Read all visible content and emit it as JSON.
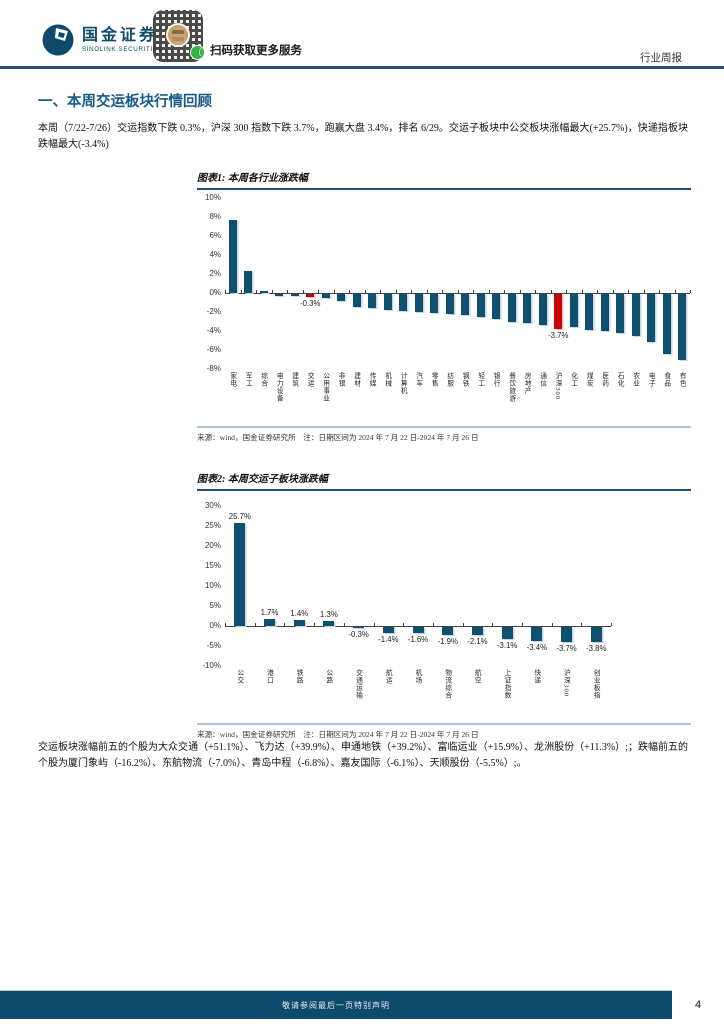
{
  "header": {
    "brand_cn": "国金证券",
    "brand_en": "SINOLINK SECURITIES",
    "qr_caption": "扫码获取更多服务",
    "report_type": "行业周报"
  },
  "section_title": "一、本周交运板块行情回顾",
  "paragraph1": "本周（7/22-7/26）交运指数下跌 0.3%，沪深 300 指数下跌 3.7%，跑赢大盘 3.4%，排名 6/29。交运子板块中公交板块涨幅最大(+25.7%)，快递指板块跌幅最大(-3.4%)",
  "figure1": {
    "title": "图表1: 本周各行业涨跌幅",
    "source": "来源：wind，国金证券研究所　注：日期区间为 2024 年 7 月 22 日-2024 年 7 月 26 日",
    "chart_data": {
      "type": "bar",
      "title": "本周各行业涨跌幅",
      "categories": [
        "家电",
        "军工",
        "综合",
        "电力设备",
        "建筑",
        "交运",
        "公用事业",
        "非银",
        "建材",
        "传媒",
        "机械",
        "计算机",
        "汽车",
        "零售",
        "纺服",
        "钢铁",
        "轻工",
        "银行",
        "餐饮旅游",
        "房地产",
        "通信",
        "沪深300",
        "化工",
        "煤炭",
        "医药",
        "石化",
        "农业",
        "电子",
        "食品",
        "有色"
      ],
      "values": [
        7.7,
        2.3,
        0.2,
        -0.2,
        -0.2,
        -0.3,
        -0.4,
        -0.7,
        -1.4,
        -1.5,
        -1.7,
        -1.8,
        -1.9,
        -2.0,
        -2.1,
        -2.2,
        -2.4,
        -2.6,
        -2.9,
        -3.1,
        -3.3,
        -3.7,
        -3.5,
        -3.8,
        -3.9,
        -4.1,
        -4.4,
        -5.0,
        -6.3,
        -6.9
      ],
      "highlight_indices": [
        5,
        21
      ],
      "value_labels": [
        {
          "index": 5,
          "text": "-0.3%"
        },
        {
          "index": 21,
          "text": "-3.7%"
        }
      ],
      "ylim": [
        -8,
        10
      ],
      "ytick_step": 2,
      "ytick_suffix": "%",
      "grid": false,
      "legend": false,
      "bar_color": "#10506F",
      "highlight_color": "#CC0000"
    }
  },
  "figure2": {
    "title": "图表2: 本周交运子板块涨跌幅",
    "source": "来源：wind，国金证券研究所　注：日期区间为 2024 年 7 月 22 日-2024 年 7 月 26 日",
    "chart_data": {
      "type": "bar",
      "title": "本周交运子板块涨跌幅",
      "categories": [
        "公交",
        "港口",
        "铁路",
        "公路",
        "交通运输",
        "航运",
        "机场",
        "物流综合",
        "航空",
        "上证指数",
        "快递",
        "沪深300",
        "创业板指"
      ],
      "values": [
        25.7,
        1.7,
        1.4,
        1.3,
        -0.3,
        -1.4,
        -1.6,
        -1.9,
        -2.1,
        -3.1,
        -3.4,
        -3.7,
        -3.8
      ],
      "highlight_indices": [],
      "value_labels": [
        {
          "index": 0,
          "text": "25.7%"
        },
        {
          "index": 1,
          "text": "1.7%"
        },
        {
          "index": 2,
          "text": "1.4%"
        },
        {
          "index": 3,
          "text": "1.3%"
        },
        {
          "index": 4,
          "text": "-0.3%"
        },
        {
          "index": 5,
          "text": "-1.4%"
        },
        {
          "index": 6,
          "text": "-1.6%"
        },
        {
          "index": 7,
          "text": "-1.9%"
        },
        {
          "index": 8,
          "text": "-2.1%"
        },
        {
          "index": 9,
          "text": "-3.1%"
        },
        {
          "index": 10,
          "text": "-3.4%"
        },
        {
          "index": 11,
          "text": "-3.7%"
        },
        {
          "index": 12,
          "text": "-3.8%"
        }
      ],
      "ylim": [
        -10,
        30
      ],
      "ytick_step": 5,
      "ytick_suffix": "%",
      "grid": false,
      "legend": false,
      "bar_color": "#10506F",
      "highlight_color": "#CC0000"
    }
  },
  "paragraph2": "交运板块涨幅前五的个股为大众交通（+51.1%）、飞力达（+39.9%）、申通地铁（+39.2%）、富临运业（+15.9%）、龙洲股份（+11.3%）;；跌幅前五的个股为厦门象屿（-16.2%）、东航物流（-7.0%）、青岛中程（-6.8%）、嘉友国际（-6.1%）、天顺股份（-5.5%）;。",
  "footer": {
    "disclaimer": "敬请参阅最后一页特别声明",
    "page_number": "4"
  },
  "colors": {
    "navy": "#0E4A6B",
    "rule_navy": "#1F4E79",
    "rule_light": "#A9C6DE",
    "bar_blue": "#10506F",
    "bar_red": "#CC0000",
    "heading_blue": "#175A86",
    "qr_badge_gold": "#C9A372",
    "wechat_green": "#35B24A"
  }
}
